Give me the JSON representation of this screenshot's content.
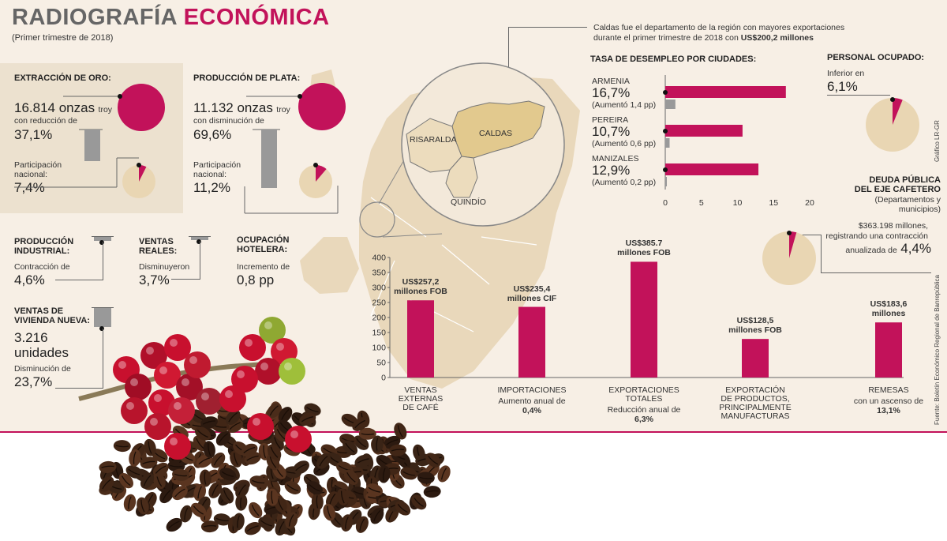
{
  "header": {
    "title_part1": "RADIOGRAFÍA",
    "title_part2": "ECONÓMICA",
    "subtitle": "(Primer trimestre de 2018)"
  },
  "caldas_note": {
    "line1": "Caldas fue el departamento de la región con mayores exportaciones",
    "line2_prefix": "durante el primer trimestre de 2018 con ",
    "line2_value": "US$200,2 millones"
  },
  "gold": {
    "heading": "EXTRACCIÓN DE ORO:",
    "amount": "16.814 onzas",
    "unit": "troy",
    "change_text": "con reducción de",
    "change_value": "37,1%",
    "share_label_1": "Participación",
    "share_label_2": "nacional:",
    "share_value": "7,4%",
    "share_pct": 7.4,
    "colors": {
      "accent": "#c2125a",
      "pie_bg": "#e9d6b3",
      "bar": "#999999"
    }
  },
  "silver": {
    "heading": "PRODUCCIÓN DE PLATA:",
    "amount": "11.132 onzas",
    "unit": "troy",
    "change_text": "con disminución de",
    "change_value": "69,6%",
    "share_label_1": "Participación",
    "share_label_2": "nacional:",
    "share_value": "11,2%",
    "share_pct": 11.2
  },
  "industrial": {
    "heading_1": "PRODUCCIÓN",
    "heading_2": "INDUSTRIAL:",
    "text": "Contracción de",
    "value": "4,6%"
  },
  "retail": {
    "heading_1": "VENTAS",
    "heading_2": "REALES:",
    "text": "Disminuyeron",
    "value": "3,7%"
  },
  "hotel": {
    "heading_1": "OCUPACIÓN",
    "heading_2": "HOTELERA:",
    "text": "Incremento de",
    "value": "0,8 pp"
  },
  "housing": {
    "heading_1": "VENTAS DE",
    "heading_2": "VIVIENDA NUEVA:",
    "units_value": "3.216",
    "units_label": "unidades",
    "text": "Disminución de",
    "value": "23,7%"
  },
  "map": {
    "risaralda": "RISARALDA",
    "caldas": "CALDAS",
    "quindio": "QUINDÍO"
  },
  "employed": {
    "heading": "PERSONAL OCUPADO:",
    "text": "Inferior en",
    "value": "6,1%",
    "share_pct": 6.1
  },
  "debt": {
    "heading_1": "DEUDA PÚBLICA",
    "heading_2": "DEL EJE CAFETERO",
    "sub_1": "(Departamentos y",
    "sub_2": "municipios)",
    "text_1": "$363.198 millones,",
    "text_2": "registrando una contracción",
    "text_3": "anualizada de",
    "value": "4,4%",
    "share_pct": 4.4
  },
  "credits": {
    "graphic": "Gráfico LR-GR",
    "source": "Fuente: Boletín Económico Regional de Banrepública"
  },
  "chart_data": [
    {
      "type": "bar",
      "orientation": "horizontal",
      "title": "TASA DE DESEMPLEO POR CIUDADES:",
      "categories": [
        "ARMENIA",
        "PEREIRA",
        "MANIZALES"
      ],
      "series": [
        {
          "values": [
            16.7,
            10.7,
            12.9
          ],
          "color": "#c2125a"
        },
        {
          "values": [
            1.4,
            0.6,
            0.2
          ],
          "color": "#999999"
        }
      ],
      "value_labels": [
        "16,7%",
        "10,7%",
        "12,9%"
      ],
      "change_labels": [
        "(Aumentó 1,4 pp)",
        "(Aumentó 0,6 pp)",
        "(Aumentó 0,2 pp)"
      ],
      "xlim": [
        0,
        20
      ],
      "xticks": [
        "0",
        "5",
        "10",
        "15",
        "20"
      ]
    },
    {
      "type": "bar",
      "categories": [
        [
          "VENTAS",
          "EXTERNAS",
          "DE CAFÉ"
        ],
        [
          "IMPORTACIONES"
        ],
        [
          "EXPORTACIONES",
          "TOTALES"
        ],
        [
          "EXPORTACIÓN",
          "DE PRODUCTOS,",
          "PRINCIPALMENTE",
          "MANUFACTURAS"
        ],
        [
          "REMESAS"
        ]
      ],
      "values": [
        257.2,
        235.4,
        385.7,
        128.5,
        183.6
      ],
      "value_labels": [
        [
          "US$257,2",
          "millones FOB"
        ],
        [
          "US$235,4",
          "millones CIF"
        ],
        [
          "US$385.7",
          "millones FOB"
        ],
        [
          "US$128,5",
          "millones FOB"
        ],
        [
          "US$183,6",
          "millones"
        ]
      ],
      "notes": [
        [],
        [
          "Aumento anual de",
          "0,4%"
        ],
        [
          "Reducción anual de",
          "6,3%"
        ],
        [],
        [
          "con un ascenso de",
          "13,1%"
        ]
      ],
      "ylim": [
        0,
        400
      ],
      "yticks": [
        "0",
        "50",
        "100",
        "150",
        "200",
        "250",
        "300",
        "350",
        "400"
      ],
      "color": "#c2125a"
    }
  ]
}
